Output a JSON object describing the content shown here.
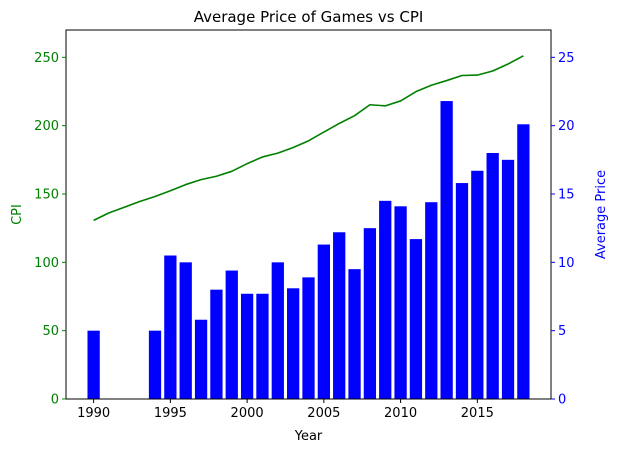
{
  "chart_data": {
    "type": "bar+line",
    "title": "Average Price of Games vs CPI",
    "xlabel": "Year",
    "ylabel_left": "CPI",
    "ylabel_right": "Average Price",
    "xlim": [
      1988.2,
      2019.8
    ],
    "ylim_left": [
      0,
      270
    ],
    "ylim_right": [
      0,
      27
    ],
    "x_ticks": [
      1990,
      1995,
      2000,
      2005,
      2010,
      2015
    ],
    "y_ticks_left": [
      0,
      50,
      100,
      150,
      200,
      250
    ],
    "y_ticks_right": [
      0,
      5,
      10,
      15,
      20,
      25
    ],
    "grid": false,
    "series": [
      {
        "type": "line",
        "axis": "left",
        "color": "#008000",
        "x": [
          1990,
          1991,
          1992,
          1993,
          1994,
          1995,
          1996,
          1997,
          1998,
          1999,
          2000,
          2001,
          2002,
          2003,
          2004,
          2005,
          2006,
          2007,
          2008,
          2009,
          2010,
          2011,
          2012,
          2013,
          2014,
          2015,
          2016,
          2017,
          2018
        ],
        "y": [
          130.7,
          136.2,
          140.3,
          144.5,
          148.2,
          152.4,
          156.9,
          160.5,
          163.0,
          166.6,
          172.2,
          177.1,
          179.9,
          184.0,
          188.9,
          195.3,
          201.6,
          207.3,
          215.3,
          214.5,
          218.1,
          224.9,
          229.6,
          233.0,
          236.7,
          237.0,
          240.0,
          245.1,
          251.1
        ]
      },
      {
        "type": "bar",
        "axis": "right",
        "color": "#0000ff",
        "x": [
          1990,
          1994,
          1995,
          1996,
          1997,
          1998,
          1999,
          2000,
          2001,
          2002,
          2003,
          2004,
          2005,
          2006,
          2007,
          2008,
          2009,
          2010,
          2011,
          2012,
          2013,
          2014,
          2015,
          2016,
          2017,
          2018
        ],
        "y": [
          5.0,
          5.0,
          10.5,
          10.0,
          5.8,
          8.0,
          9.4,
          7.7,
          7.7,
          10.0,
          8.1,
          8.9,
          11.3,
          12.2,
          9.5,
          12.5,
          14.5,
          14.1,
          11.7,
          14.4,
          21.8,
          15.8,
          16.7,
          18.0,
          17.5,
          20.1
        ]
      }
    ],
    "colors": {
      "left_axis": "#008000",
      "right_axis": "#0000ff",
      "frame": "#000000"
    }
  }
}
